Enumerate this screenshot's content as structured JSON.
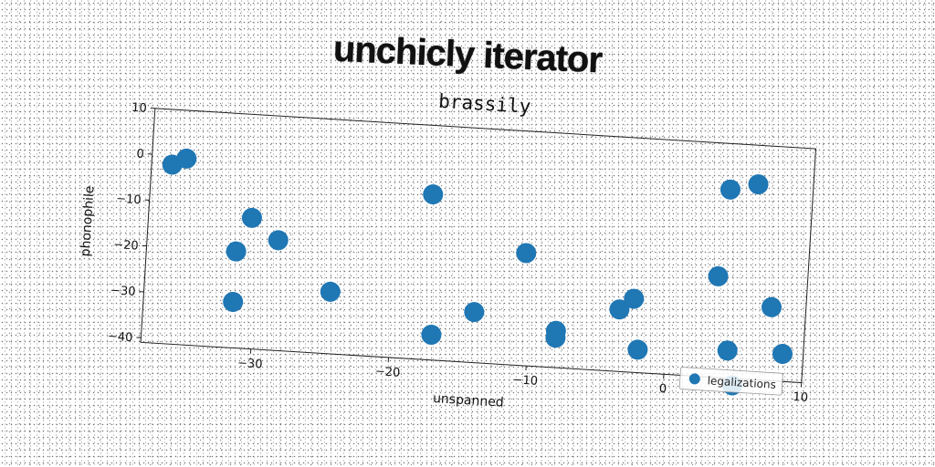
{
  "header": {
    "title": "unchicly iterator"
  },
  "chart_data": {
    "type": "scatter",
    "title": "brassily",
    "xlabel": "unspanned",
    "ylabel": "phonophile",
    "xlim": [
      -38,
      10
    ],
    "ylim": [
      -41,
      10
    ],
    "xticks": [
      -30,
      -20,
      -10,
      0,
      10
    ],
    "yticks": [
      10,
      0,
      -10,
      -20,
      -30,
      -40
    ],
    "grid": false,
    "legend_position": "lower-right",
    "point_color": "#1f77b4",
    "series": [
      {
        "name": "legalizations",
        "points": [
          [
            -36.5,
            -2
          ],
          [
            -35.5,
            -0.5
          ],
          [
            -31.5,
            -20
          ],
          [
            -30.5,
            -12.5
          ],
          [
            -31.5,
            -31
          ],
          [
            -28.5,
            -17
          ],
          [
            -24.5,
            -27.5
          ],
          [
            -17.5,
            -5
          ],
          [
            -17,
            -35.5
          ],
          [
            -14,
            -30
          ],
          [
            -10.5,
            -16.5
          ],
          [
            -8,
            -33
          ],
          [
            -8,
            -34.5
          ],
          [
            -3.5,
            -27.5
          ],
          [
            -2.5,
            -25
          ],
          [
            -2,
            -36
          ],
          [
            4,
            0
          ],
          [
            6,
            1.5
          ],
          [
            3.5,
            -19
          ],
          [
            4.5,
            -35
          ],
          [
            7.5,
            -25
          ],
          [
            8.5,
            -35
          ],
          [
            5,
            -42.5
          ]
        ]
      }
    ]
  }
}
